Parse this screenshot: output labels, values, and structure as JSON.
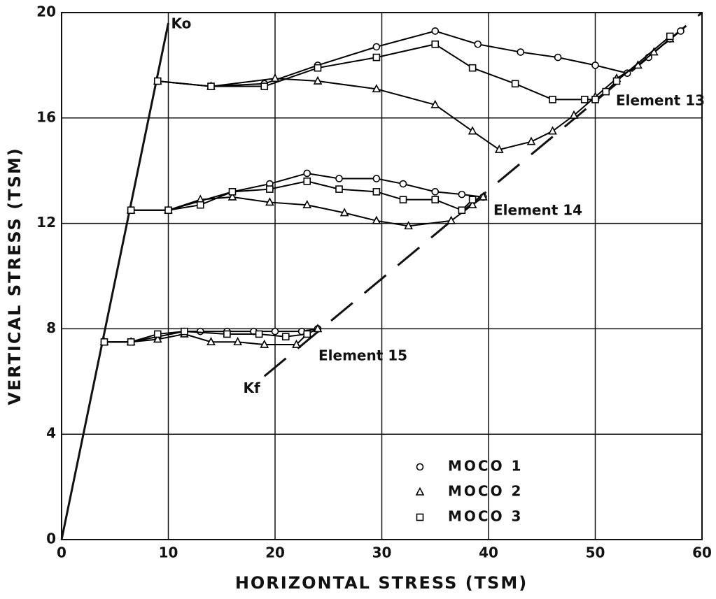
{
  "chart_data": {
    "type": "line",
    "xlabel": "HORIZONTAL  STRESS (TSM)",
    "ylabel": "VERTICAL  STRESS (TSM)",
    "xlim": [
      0,
      60
    ],
    "ylim": [
      0,
      20
    ],
    "xticks": [
      0,
      10,
      20,
      30,
      40,
      50,
      60
    ],
    "yticks": [
      0,
      4,
      8,
      12,
      16,
      20
    ],
    "grid": true,
    "legend": "lower right",
    "series": [
      {
        "name": "MOCO  1",
        "color": "#000000",
        "marker": "circle",
        "x": [
          9,
          14,
          19,
          24,
          29.5,
          35,
          39,
          43,
          46.5,
          50,
          53,
          55,
          57,
          58,
          null,
          6.5,
          10,
          16,
          19.5,
          23,
          26,
          29.5,
          32,
          35,
          37.5,
          39.5,
          null,
          4,
          6.5,
          9,
          11.5,
          13,
          15.5,
          18,
          20,
          22.5,
          24
        ],
        "y": [
          17.4,
          17.2,
          17.3,
          18.0,
          18.7,
          19.3,
          18.8,
          18.5,
          18.3,
          18.0,
          17.7,
          18.3,
          19.0,
          19.3,
          null,
          12.5,
          12.5,
          13.2,
          13.5,
          13.9,
          13.7,
          13.7,
          13.5,
          13.2,
          13.1,
          13.0,
          null,
          7.5,
          7.5,
          7.7,
          7.9,
          7.9,
          7.9,
          7.9,
          7.9,
          7.9,
          8.0
        ]
      },
      {
        "name": "MOCO  2",
        "color": "#000000",
        "marker": "triangle",
        "x": [
          9,
          14,
          20,
          24,
          29.5,
          35,
          38.5,
          41,
          44,
          46,
          48,
          50,
          52,
          54,
          55.5,
          57,
          null,
          6.5,
          10,
          13,
          16,
          19.5,
          23,
          26.5,
          29.5,
          32.5,
          36.5,
          38.5,
          39.5,
          null,
          4,
          6.5,
          9,
          11.5,
          14,
          16.5,
          19,
          22,
          23,
          24
        ],
        "y": [
          17.4,
          17.2,
          17.5,
          17.4,
          17.1,
          16.5,
          15.5,
          14.8,
          15.1,
          15.5,
          16.1,
          16.8,
          17.5,
          18.0,
          18.5,
          19.0,
          null,
          12.5,
          12.5,
          12.9,
          13.0,
          12.8,
          12.7,
          12.4,
          12.1,
          11.9,
          12.1,
          12.7,
          13.0,
          null,
          7.5,
          7.5,
          7.6,
          7.8,
          7.5,
          7.5,
          7.4,
          7.4,
          7.8,
          8.0
        ]
      },
      {
        "name": "MOCO  3",
        "color": "#000000",
        "marker": "square",
        "x": [
          9,
          14,
          19,
          24,
          29.5,
          35,
          38.5,
          42.5,
          46,
          49,
          50,
          51,
          52,
          57,
          null,
          6.5,
          10,
          13,
          16,
          19.5,
          23,
          26,
          29.5,
          32,
          35,
          37.5,
          38.5,
          null,
          4,
          6.5,
          9,
          11.5,
          15.5,
          18.5,
          21,
          23
        ],
        "y": [
          17.4,
          17.2,
          17.2,
          17.9,
          18.3,
          18.8,
          17.9,
          17.3,
          16.7,
          16.7,
          16.7,
          17.0,
          17.4,
          19.1,
          null,
          12.5,
          12.5,
          12.7,
          13.2,
          13.3,
          13.6,
          13.3,
          13.2,
          12.9,
          12.9,
          12.5,
          12.9,
          null,
          7.5,
          7.5,
          7.8,
          7.9,
          7.8,
          7.8,
          7.7,
          7.8
        ]
      }
    ],
    "reference_lines": [
      {
        "label": "Ko",
        "x": [
          0,
          10
        ],
        "y": [
          0,
          19.6
        ],
        "dashed": false
      },
      {
        "label": "Kf",
        "x": [
          19,
          60
        ],
        "y": [
          6.2,
          20
        ],
        "dashed": true
      }
    ],
    "annotations": [
      "Element 13",
      "Element 14",
      "Element 15"
    ]
  }
}
